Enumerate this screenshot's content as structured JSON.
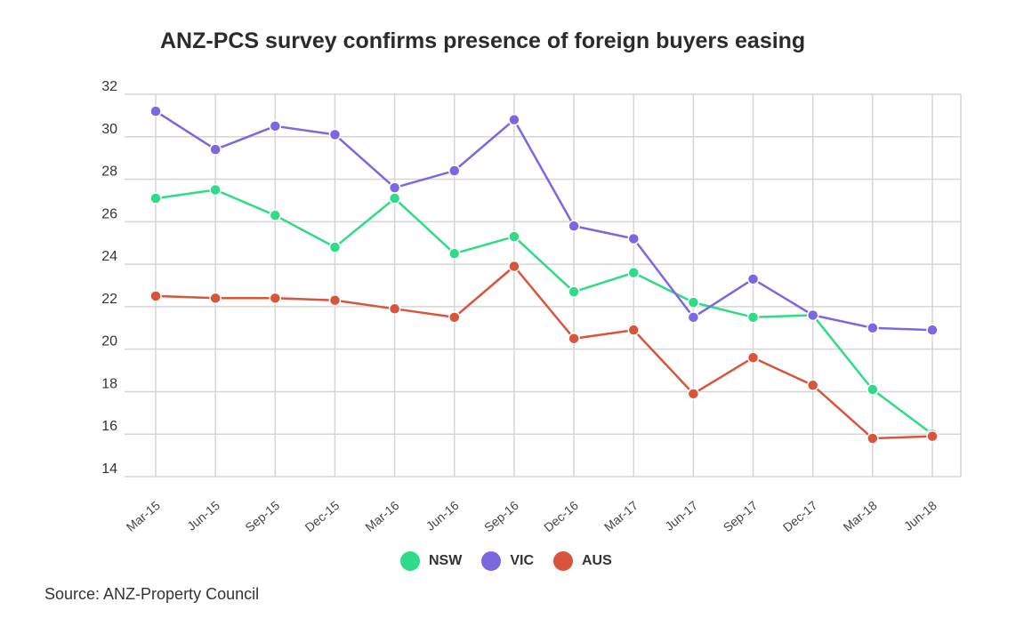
{
  "title": "ANZ-PCS survey confirms presence of foreign buyers easing",
  "source": "Source: ANZ-Property Council",
  "chart_data": {
    "type": "line",
    "title": "ANZ-PCS survey confirms presence of foreign buyers easing",
    "xlabel": "",
    "ylabel": "",
    "ylim": [
      14,
      32
    ],
    "yticks": [
      14,
      16,
      18,
      20,
      22,
      24,
      26,
      28,
      30,
      32
    ],
    "grid": true,
    "legend": "bottom",
    "categories": [
      "Mar-15",
      "Jun-15",
      "Sep-15",
      "Dec-15",
      "Mar-16",
      "Jun-16",
      "Sep-16",
      "Dec-16",
      "Mar-17",
      "Jun-17",
      "Sep-17",
      "Dec-17",
      "Mar-18",
      "Jun-18"
    ],
    "series": [
      {
        "name": "NSW",
        "color": "#2edb86",
        "values": [
          27.1,
          27.5,
          26.3,
          24.8,
          27.1,
          24.5,
          25.3,
          22.7,
          23.6,
          22.2,
          21.5,
          21.6,
          18.1,
          16.0
        ]
      },
      {
        "name": "VIC",
        "color": "#7b68e0",
        "values": [
          31.2,
          29.4,
          30.5,
          30.1,
          27.6,
          28.4,
          30.8,
          25.8,
          25.2,
          21.5,
          23.3,
          21.6,
          21.0,
          20.9
        ]
      },
      {
        "name": "AUS",
        "color": "#d8543a",
        "values": [
          22.5,
          22.4,
          22.4,
          22.3,
          21.9,
          21.5,
          23.9,
          20.5,
          20.9,
          17.9,
          19.6,
          18.3,
          15.8,
          15.9
        ]
      }
    ]
  }
}
